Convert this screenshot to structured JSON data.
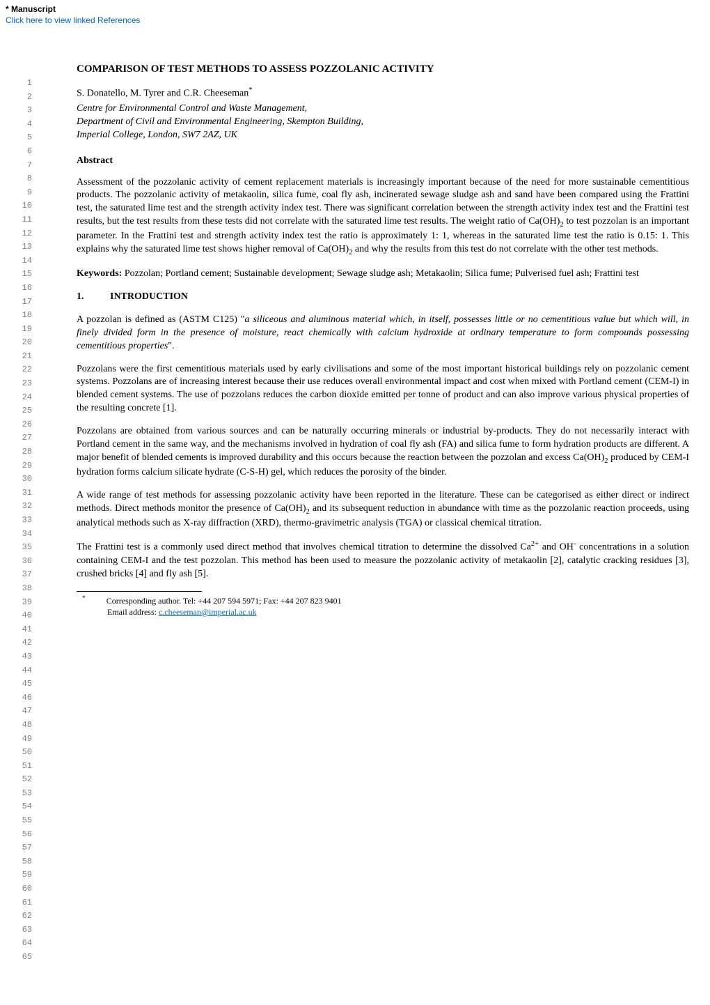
{
  "header": {
    "manuscript": "* Manuscript",
    "click_here": "Click here to view linked References"
  },
  "title": "COMPARISON OF TEST METHODS TO ASSESS POZZOLANIC ACTIVITY",
  "authors": "S. Donatello, M. Tyrer and C.R. Cheeseman",
  "author_marker": "*",
  "affil1": "Centre for Environmental Control and Waste Management,",
  "affil2": "Department of Civil and Environmental Engineering, Skempton Building,",
  "affil3": "Imperial College, London, SW7 2AZ, UK",
  "abstract_label": "Abstract",
  "abstract_text1": "Assessment of the pozzolanic activity of cement replacement materials is increasingly important because of the need for more sustainable cementitious products. The pozzolanic activity of metakaolin, silica fume, coal fly ash, incinerated sewage sludge ash and sand have been compared using the Frattini test, the saturated lime test and the strength activity index test. There was significant correlation between the strength activity index test and the Frattini test results, but the test results from these tests did not correlate with the saturated lime test results. The weight ratio of Ca(OH)",
  "abstract_text2": " to test pozzolan is an important parameter. In the Frattini test and strength activity index test the ratio is approximately 1: 1, whereas in the saturated lime test the ratio is 0.15: 1. This explains why the saturated lime test shows higher removal of Ca(OH)",
  "abstract_text3": " and why the results from this test do not correlate with the other test methods.",
  "keywords_label": "Keywords:",
  "keywords_text": " Pozzolan; Portland cement; Sustainable development; Sewage sludge ash; Metakaolin; Silica fume; Pulverised fuel ash; Frattini test",
  "sec1_num": "1.",
  "sec1_title": "INTRODUCTION",
  "p1a": "A pozzolan is defined as (ASTM C125) \"",
  "p1_ital": "a siliceous and aluminous material which, in itself, possesses little or no cementitious value but which will, in finely divided form in the presence of moisture, react chemically with calcium hydroxide at ordinary temperature to form compounds possessing cementitious properties",
  "p1b": "\".",
  "p2": "Pozzolans were the first cementitious materials used by early civilisations and some of the most important historical buildings rely on pozzolanic cement systems. Pozzolans are of increasing interest because their use reduces overall environmental impact and cost when mixed with Portland cement (CEM-I) in blended cement systems. The use of pozzolans reduces the carbon dioxide emitted per tonne of product and can also improve various physical properties of the resulting concrete [1].",
  "p3a": "Pozzolans are obtained from various sources and can be naturally occurring minerals or industrial by-products. They do not necessarily interact with Portland cement in the same way, and the mechanisms involved in hydration of coal fly ash (FA) and silica fume to form hydration products are different. A major benefit of blended cements is improved durability and this occurs because the reaction between the pozzolan and excess Ca(OH)",
  "p3b": " produced by CEM-I hydration forms calcium silicate hydrate (C-S-H) gel, which reduces the porosity of the binder.",
  "p4a": "A wide range of test methods for assessing pozzolanic activity have been reported in the literature. These can be categorised as either direct or indirect methods. Direct methods monitor the presence of Ca(OH)",
  "p4b": " and its subsequent reduction in abundance with time as the pozzolanic reaction proceeds, using analytical methods such as X-ray diffraction (XRD), thermo-gravimetric analysis (TGA) or classical chemical titration.",
  "p5a": "The Frattini test is a commonly used direct method that involves chemical titration to determine the dissolved Ca",
  "p5_sup": "2+",
  "p5b": " and OH",
  "p5_sup2": "-",
  "p5c": " concentrations in a solution containing CEM-I and the test pozzolan. This method has been used to measure the pozzolanic activity of metakaolin [2], catalytic cracking residues [3], crushed bricks [4] and fly ash [5].",
  "footnote_marker": "*",
  "footnote1": "Corresponding author. Tel: +44 207 594 5971; Fax: +44 207 823 9401",
  "footnote2_pre": "Email address: ",
  "footnote_email": "c.cheeseman@imperial.ac.uk",
  "sub2": "2",
  "line_start": 1,
  "line_end": 65
}
